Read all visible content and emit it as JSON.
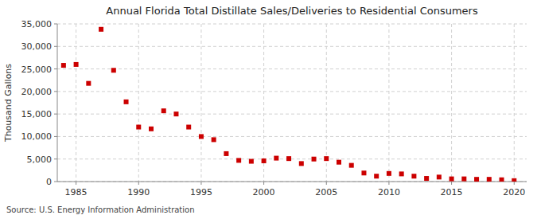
{
  "chart_data": {
    "type": "scatter",
    "title": "Annual Florida Total Distillate Sales/Deliveries to Residential Consumers",
    "ylabel": "Thousand Gallons",
    "annotations": [
      "Source: U.S. Energy Information Administration"
    ],
    "x": [
      1984,
      1985,
      1986,
      1987,
      1988,
      1989,
      1990,
      1991,
      1992,
      1993,
      1994,
      1995,
      1996,
      1997,
      1998,
      1999,
      2000,
      2001,
      2002,
      2003,
      2004,
      2005,
      2006,
      2007,
      2008,
      2009,
      2010,
      2011,
      2012,
      2013,
      2014,
      2015,
      2016,
      2017,
      2018,
      2019,
      2020
    ],
    "values": [
      25800,
      26000,
      21800,
      33800,
      24700,
      17700,
      12100,
      11700,
      15700,
      15000,
      12100,
      10000,
      9300,
      6200,
      4700,
      4500,
      4600,
      5200,
      5100,
      4000,
      5000,
      5100,
      4300,
      3600,
      1900,
      1200,
      1800,
      1700,
      1200,
      700,
      1000,
      600,
      600,
      500,
      500,
      400,
      200
    ],
    "color": "#cc0000",
    "marker": "square",
    "grid": true,
    "xlim": [
      1983.5,
      2021
    ],
    "ylim": [
      0,
      35000
    ],
    "xticks": [
      1985,
      1990,
      1995,
      2000,
      2005,
      2010,
      2015,
      2020
    ],
    "yticks": [
      0,
      {
        "value": 5000,
        "label": "5,000"
      },
      {
        "value": 10000,
        "label": "10,000"
      },
      {
        "value": 15000,
        "label": "15,000"
      },
      {
        "value": 20000,
        "label": "20,000"
      },
      {
        "value": 25000,
        "label": "25,000"
      },
      {
        "value": 30000,
        "label": "30,000"
      },
      {
        "value": 35000,
        "label": "35,000"
      }
    ]
  }
}
